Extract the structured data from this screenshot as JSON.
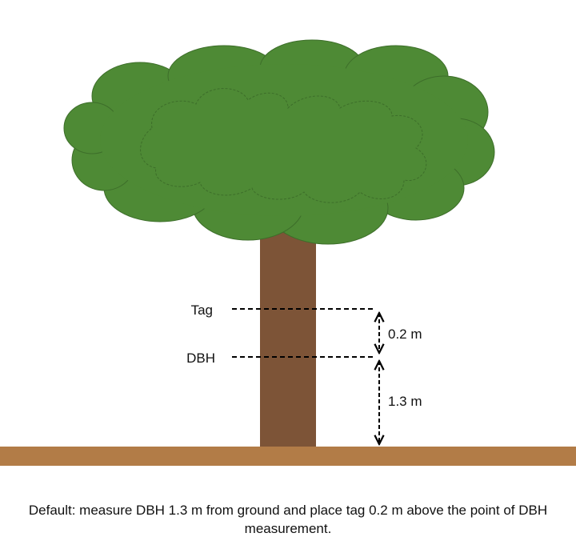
{
  "diagram": {
    "labels": {
      "tag": "Tag",
      "dbh": "DBH",
      "upper_measure": "0.2 m",
      "lower_measure": "1.3 m"
    },
    "caption": "Default: measure DBH 1.3 m from ground and place tag 0.2 m above the point of DBH measurement.",
    "colors": {
      "canopy": "#4e8a35",
      "canopy_edge": "#3d6e2a",
      "trunk": "#7d5437",
      "ground": "#b27c47",
      "lines": "#000000"
    }
  }
}
